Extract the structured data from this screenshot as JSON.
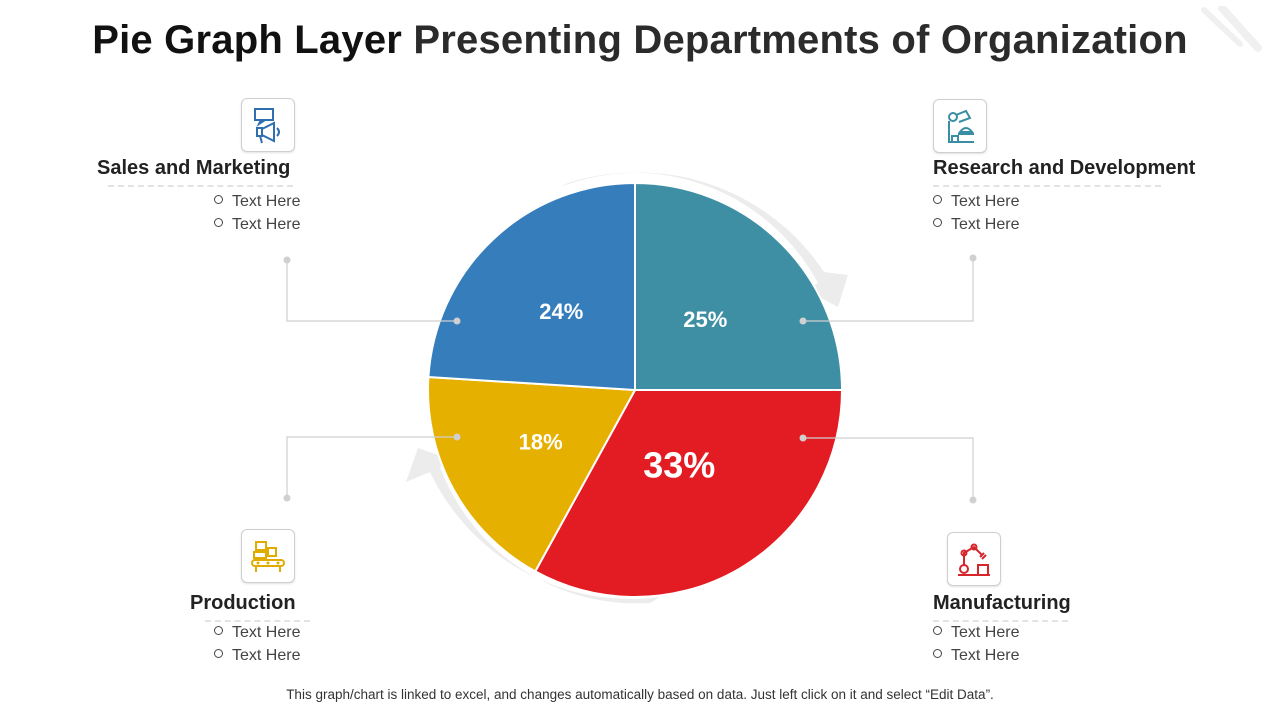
{
  "title": {
    "part1": "Pie Graph Layer",
    "part2": "Presenting Departments of Organization"
  },
  "departments": [
    {
      "name": "Sales and Marketing",
      "icon": "megaphone-icon",
      "bullets": [
        "Text Here",
        "Text Here"
      ]
    },
    {
      "name": "Research and Development",
      "icon": "microscope-icon",
      "bullets": [
        "Text Here",
        "Text Here"
      ]
    },
    {
      "name": "Production",
      "icon": "conveyor-icon",
      "bullets": [
        "Text Here",
        "Text Here"
      ]
    },
    {
      "name": "Manufacturing",
      "icon": "robot-arm-icon",
      "bullets": [
        "Text Here",
        "Text Here"
      ]
    }
  ],
  "chart_data": {
    "type": "pie",
    "start_angle": "12 o'clock, clockwise",
    "slices": [
      {
        "label": "Research and Development",
        "value": 25,
        "display": "25%",
        "color": "#3f8fa4"
      },
      {
        "label": "Manufacturing",
        "value": 33,
        "display": "33%",
        "color": "#e31b22"
      },
      {
        "label": "Production",
        "value": 18,
        "display": "18%",
        "color": "#e6b000"
      },
      {
        "label": "Sales and Marketing",
        "value": 24,
        "display": "24%",
        "color": "#357dbb"
      }
    ]
  },
  "colors": {
    "connector": "#cfcfcf",
    "arrow": "#ececec"
  },
  "footnote": "This graph/chart is linked to excel, and changes automatically based on data. Just left click on it and select “Edit Data”."
}
